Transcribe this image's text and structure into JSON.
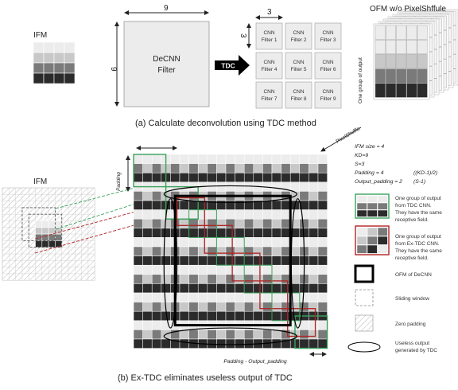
{
  "top": {
    "ifm_label": "IFM",
    "decnn_size_w": "9",
    "decnn_size_h": "9",
    "decnn_line1": "DeCNN",
    "decnn_line2": "Filter",
    "tdc_label": "TDC",
    "cnn_size_w": "3",
    "cnn_size_h": "3",
    "cnn_filters": [
      {
        "line1": "CNN",
        "line2": "Filter 1"
      },
      {
        "line1": "CNN",
        "line2": "Filter 2"
      },
      {
        "line1": "CNN",
        "line2": "Filter 3"
      },
      {
        "line1": "CNN",
        "line2": "Filter 4"
      },
      {
        "line1": "CNN",
        "line2": "Filter 5"
      },
      {
        "line1": "CNN",
        "line2": "Filter 6"
      },
      {
        "line1": "CNN",
        "line2": "Filter 7"
      },
      {
        "line1": "CNN",
        "line2": "Filter 8"
      },
      {
        "line1": "CNN",
        "line2": "Filter 9"
      }
    ],
    "ofm_label": "OFM w/o PixelShffule",
    "ofm_side_label": "One group of output",
    "pixelshuffle_label": "PixelShuffle",
    "caption": "(a) Calculate deconvolution using TDC method"
  },
  "bottom": {
    "ifm_label": "IFM",
    "padding_label": "Padding",
    "bottom_label": "Padding - Output_padding",
    "caption": "(b) Ex-TDC eliminates useless output of TDC",
    "params": {
      "line1": "IFM size = 4",
      "line2": "KD=9",
      "line3": "S=3",
      "line4": "Padding = 4",
      "line4_note": "((KD-1)/2)",
      "line5": "Output_padding = 2",
      "line5_note": "(S-1)"
    },
    "legend": {
      "green": [
        "One group of output",
        "from TDC CNN.",
        "They have the same",
        "receptive field."
      ],
      "red": [
        "One group of output",
        "from Ex-TDC CNN.",
        "They have the same",
        "receptive field."
      ],
      "ofm": "OFM of DeCNN",
      "sliding": "Sliding window",
      "zero": "Zero padding",
      "useless": [
        "Useless output",
        "generated by TDC"
      ]
    }
  },
  "colors": {
    "green": "#3aa35c",
    "red": "#b22222",
    "black": "#000000",
    "dark": "#2b2b2b",
    "mid": "#7a7a7a",
    "light": "#c8c8c8",
    "pale": "#ececec"
  }
}
